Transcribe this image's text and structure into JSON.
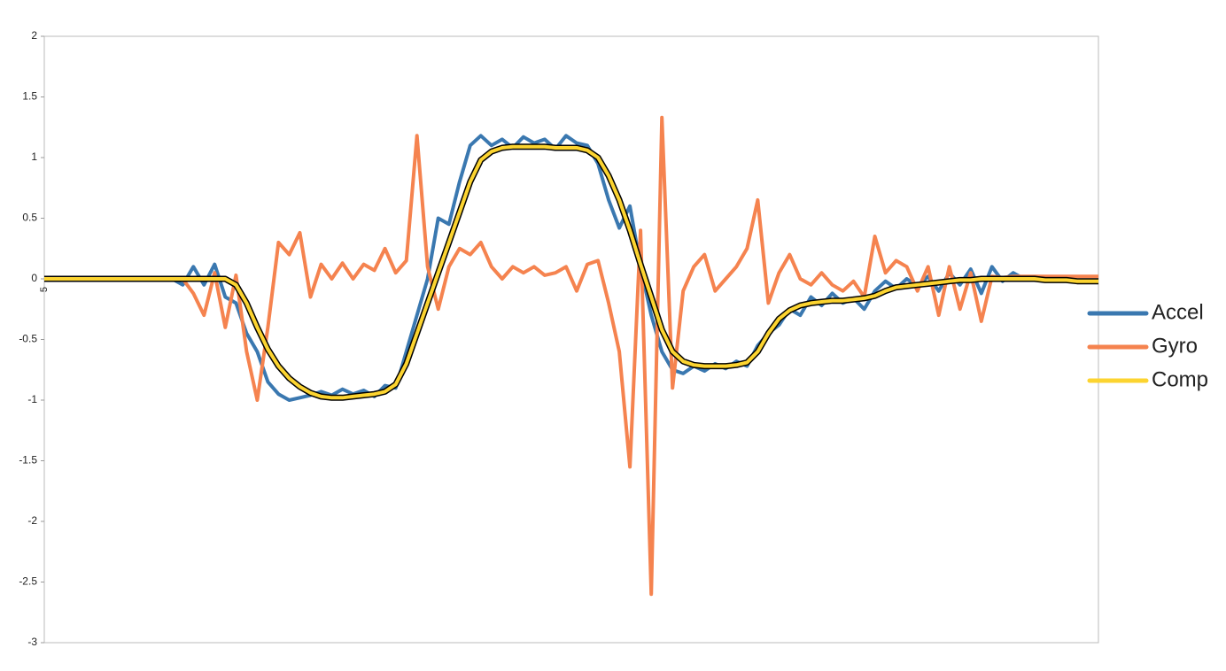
{
  "chart_data": {
    "type": "line",
    "categories": [
      "5",
      null,
      null,
      null,
      null,
      null,
      null,
      null,
      null,
      null,
      null,
      null,
      null,
      null,
      null,
      null,
      null,
      null,
      null,
      null,
      null,
      null,
      null,
      null,
      null,
      null,
      null,
      null,
      null,
      null,
      null,
      null,
      null,
      null,
      null,
      null,
      null,
      null,
      null,
      null,
      null,
      null,
      null,
      null,
      null,
      null,
      null,
      null,
      null,
      null,
      null,
      null,
      null,
      null,
      null,
      null,
      null,
      null,
      null,
      null,
      null,
      null,
      null,
      null,
      null,
      null,
      null,
      null,
      null,
      null,
      null,
      null,
      null,
      null,
      null,
      null,
      null,
      null,
      null,
      null,
      null,
      null,
      null,
      null,
      null,
      null,
      null,
      null,
      null,
      null,
      null,
      null,
      null,
      null,
      null,
      null,
      null,
      null,
      null,
      null
    ],
    "series": [
      {
        "name": "Accel",
        "color": "#3a78b0",
        "values": [
          0,
          0,
          0,
          0,
          0,
          0,
          0,
          0,
          0,
          0,
          0,
          0,
          0,
          -0.05,
          0.1,
          -0.05,
          0.12,
          -0.15,
          -0.2,
          -0.45,
          -0.6,
          -0.85,
          -0.95,
          -1.0,
          -0.98,
          -0.96,
          -0.93,
          -0.96,
          -0.91,
          -0.95,
          -0.92,
          -0.97,
          -0.88,
          -0.9,
          -0.6,
          -0.3,
          0.0,
          0.5,
          0.45,
          0.8,
          1.1,
          1.18,
          1.1,
          1.15,
          1.08,
          1.17,
          1.12,
          1.15,
          1.07,
          1.18,
          1.12,
          1.1,
          0.95,
          0.65,
          0.42,
          0.6,
          0.1,
          -0.3,
          -0.6,
          -0.75,
          -0.78,
          -0.72,
          -0.76,
          -0.7,
          -0.74,
          -0.68,
          -0.72,
          -0.55,
          -0.45,
          -0.38,
          -0.25,
          -0.3,
          -0.15,
          -0.22,
          -0.12,
          -0.2,
          -0.16,
          -0.25,
          -0.1,
          -0.02,
          -0.08,
          0.0,
          -0.06,
          0.02,
          -0.1,
          0.05,
          -0.05,
          0.08,
          -0.12,
          0.1,
          -0.02,
          0.05,
          0,
          0,
          -0.01,
          -0.01,
          -0.01,
          -0.02,
          -0.02,
          -0.02
        ]
      },
      {
        "name": "Gyro",
        "color": "#f5834f",
        "values": [
          0,
          0,
          0,
          0,
          0,
          0,
          0,
          0,
          0,
          0,
          0,
          0,
          0,
          0,
          -0.12,
          -0.3,
          0.05,
          -0.4,
          0.03,
          -0.6,
          -1.0,
          -0.4,
          0.3,
          0.2,
          0.38,
          -0.15,
          0.12,
          0.0,
          0.13,
          0.0,
          0.12,
          0.07,
          0.25,
          0.05,
          0.15,
          1.18,
          0.1,
          -0.25,
          0.1,
          0.25,
          0.2,
          0.3,
          0.1,
          0.0,
          0.1,
          0.05,
          0.1,
          0.03,
          0.05,
          0.1,
          -0.1,
          0.12,
          0.15,
          -0.2,
          -0.6,
          -1.55,
          0.4,
          -2.6,
          1.33,
          -0.9,
          -0.1,
          0.1,
          0.2,
          -0.1,
          0.0,
          0.1,
          0.25,
          0.65,
          -0.2,
          0.05,
          0.2,
          0.0,
          -0.05,
          0.05,
          -0.05,
          -0.1,
          -0.02,
          -0.15,
          0.35,
          0.05,
          0.15,
          0.1,
          -0.1,
          0.1,
          -0.3,
          0.1,
          -0.25,
          0.05,
          -0.35,
          0.02,
          0.01,
          0.02,
          0.02,
          0.02,
          0.02,
          0.02,
          0.02,
          0.02,
          0.02,
          0.02
        ]
      },
      {
        "name": "Comp",
        "color": "#fcd430",
        "values": [
          0,
          0,
          0,
          0,
          0,
          0,
          0,
          0,
          0,
          0,
          0,
          0,
          0,
          0,
          0,
          0,
          0,
          0,
          -0.05,
          -0.2,
          -0.4,
          -0.58,
          -0.72,
          -0.82,
          -0.89,
          -0.94,
          -0.97,
          -0.98,
          -0.98,
          -0.97,
          -0.96,
          -0.95,
          -0.93,
          -0.87,
          -0.7,
          -0.45,
          -0.2,
          0.05,
          0.3,
          0.55,
          0.8,
          0.98,
          1.05,
          1.08,
          1.09,
          1.09,
          1.09,
          1.09,
          1.08,
          1.08,
          1.08,
          1.06,
          1.0,
          0.85,
          0.65,
          0.4,
          0.12,
          -0.15,
          -0.42,
          -0.6,
          -0.68,
          -0.71,
          -0.72,
          -0.72,
          -0.72,
          -0.71,
          -0.69,
          -0.6,
          -0.45,
          -0.33,
          -0.26,
          -0.22,
          -0.2,
          -0.19,
          -0.18,
          -0.18,
          -0.17,
          -0.16,
          -0.14,
          -0.1,
          -0.07,
          -0.06,
          -0.05,
          -0.04,
          -0.03,
          -0.02,
          -0.01,
          -0.01,
          0,
          0,
          0,
          0,
          0,
          0,
          -0.01,
          -0.01,
          -0.01,
          -0.02,
          -0.02,
          -0.02
        ]
      }
    ],
    "ylim": [
      -3,
      2
    ],
    "yticks": [
      2,
      1.5,
      1,
      0.5,
      0,
      -0.5,
      -1,
      -1.5,
      -2,
      -2.5,
      -3
    ],
    "grid": false,
    "legend": "right"
  }
}
